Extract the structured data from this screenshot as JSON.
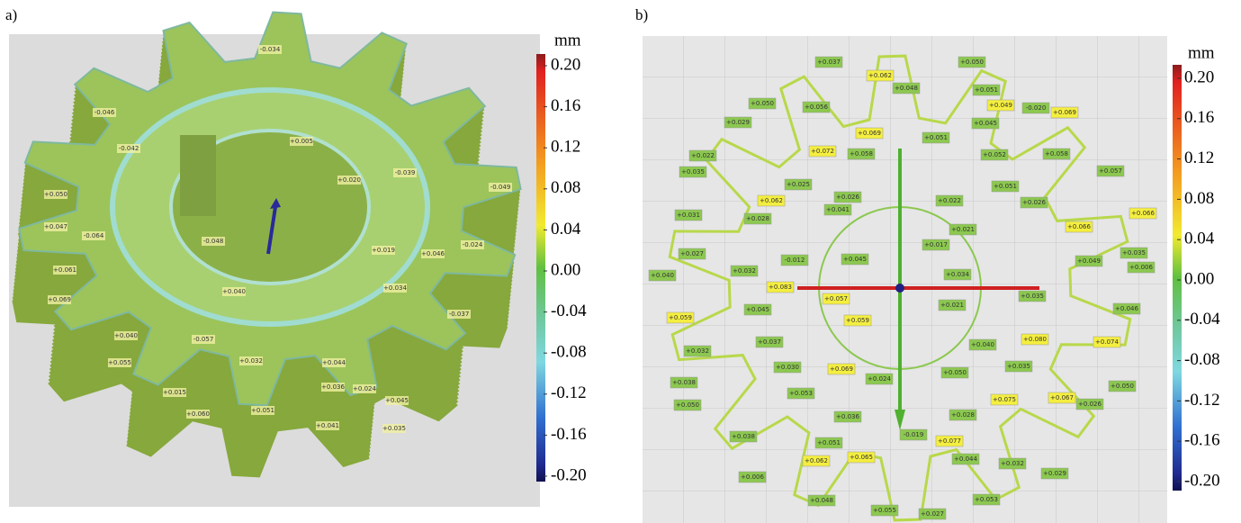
{
  "panels": [
    {
      "label": "a)",
      "unit": "mm",
      "scale": [
        "0.20",
        "0.16",
        "0.12",
        "0.08",
        "0.04",
        "0.00",
        "-0.04",
        "-0.08",
        "-0.12",
        "-0.16",
        "-0.20"
      ],
      "annotations": [
        "-0.034",
        "-0.046",
        "-0.042",
        "+0.005",
        "+0.020",
        "-0.039",
        "+0.050",
        "+0.047",
        "-0.049",
        "-0.064",
        "-0.048",
        "+0.019",
        "-0.024",
        "+0.061",
        "+0.046",
        "+0.069",
        "+0.040",
        "+0.034",
        "-0.037",
        "+0.040",
        "-0.057",
        "+0.055",
        "+0.032",
        "+0.044",
        "+0.036",
        "+0.024",
        "+0.015",
        "+0.045",
        "+0.060",
        "+0.051",
        "+0.041",
        "+0.035"
      ]
    },
    {
      "label": "b)",
      "unit": "mm",
      "scale": [
        "0.20",
        "0.16",
        "0.12",
        "0.08",
        "0.04",
        "0.00",
        "-0.04",
        "-0.08",
        "-0.12",
        "-0.16",
        "-0.20"
      ],
      "annotations": [
        {
          "text": "+0.037",
          "color": "#8cc850"
        },
        {
          "text": "+0.062",
          "color": "#f4ee40"
        },
        {
          "text": "+0.050",
          "color": "#8cc850"
        },
        {
          "text": "+0.048",
          "color": "#8cc850"
        },
        {
          "text": "+0.051",
          "color": "#8cc850"
        },
        {
          "text": "+0.049",
          "color": "#f4ee40"
        },
        {
          "text": "-0.020",
          "color": "#8cc850"
        },
        {
          "text": "+0.069",
          "color": "#f4ee40"
        },
        {
          "text": "+0.050",
          "color": "#8cc850"
        },
        {
          "text": "+0.029",
          "color": "#8cc850"
        },
        {
          "text": "+0.056",
          "color": "#8cc850"
        },
        {
          "text": "+0.045",
          "color": "#8cc850"
        },
        {
          "text": "+0.069",
          "color": "#f4ee40"
        },
        {
          "text": "+0.051",
          "color": "#8cc850"
        },
        {
          "text": "+0.072",
          "color": "#f4ee40"
        },
        {
          "text": "+0.058",
          "color": "#8cc850"
        },
        {
          "text": "+0.052",
          "color": "#8cc850"
        },
        {
          "text": "+0.058",
          "color": "#8cc850"
        },
        {
          "text": "+0.022",
          "color": "#8cc850"
        },
        {
          "text": "+0.025",
          "color": "#8cc850"
        },
        {
          "text": "+0.062",
          "color": "#f4ee40"
        },
        {
          "text": "+0.035",
          "color": "#8cc850"
        },
        {
          "text": "+0.026",
          "color": "#8cc850"
        },
        {
          "text": "+0.022",
          "color": "#8cc850"
        },
        {
          "text": "+0.057",
          "color": "#8cc850"
        },
        {
          "text": "+0.051",
          "color": "#8cc850"
        },
        {
          "text": "+0.026",
          "color": "#8cc850"
        },
        {
          "text": "+0.041",
          "color": "#8cc850"
        },
        {
          "text": "+0.031",
          "color": "#8cc850"
        },
        {
          "text": "+0.028",
          "color": "#8cc850"
        },
        {
          "text": "+0.021",
          "color": "#8cc850"
        },
        {
          "text": "+0.017",
          "color": "#8cc850"
        },
        {
          "text": "+0.066",
          "color": "#f4ee40"
        },
        {
          "text": "+0.066",
          "color": "#f4ee40"
        },
        {
          "text": "+0.027",
          "color": "#8cc850"
        },
        {
          "text": "+0.035",
          "color": "#8cc850"
        },
        {
          "text": "-0.012",
          "color": "#8cc850"
        },
        {
          "text": "+0.045",
          "color": "#8cc850"
        },
        {
          "text": "+0.049",
          "color": "#8cc850"
        },
        {
          "text": "+0.006",
          "color": "#8cc850"
        },
        {
          "text": "+0.040",
          "color": "#8cc850"
        },
        {
          "text": "+0.032",
          "color": "#8cc850"
        },
        {
          "text": "+0.034",
          "color": "#8cc850"
        },
        {
          "text": "+0.083",
          "color": "#f4ee40"
        },
        {
          "text": "+0.057",
          "color": "#f4ee40"
        },
        {
          "text": "+0.035",
          "color": "#8cc850"
        },
        {
          "text": "+0.021",
          "color": "#8cc850"
        },
        {
          "text": "+0.046",
          "color": "#8cc850"
        },
        {
          "text": "+0.059",
          "color": "#f4ee40"
        },
        {
          "text": "+0.045",
          "color": "#8cc850"
        },
        {
          "text": "+0.059",
          "color": "#f4ee40"
        },
        {
          "text": "+0.037",
          "color": "#8cc850"
        },
        {
          "text": "+0.080",
          "color": "#f4ee40"
        },
        {
          "text": "+0.074",
          "color": "#f4ee40"
        },
        {
          "text": "+0.040",
          "color": "#8cc850"
        },
        {
          "text": "+0.032",
          "color": "#8cc850"
        },
        {
          "text": "+0.030",
          "color": "#8cc850"
        },
        {
          "text": "+0.069",
          "color": "#f4ee40"
        },
        {
          "text": "+0.024",
          "color": "#8cc850"
        },
        {
          "text": "+0.050",
          "color": "#8cc850"
        },
        {
          "text": "+0.035",
          "color": "#8cc850"
        },
        {
          "text": "+0.038",
          "color": "#8cc850"
        },
        {
          "text": "+0.050",
          "color": "#8cc850"
        },
        {
          "text": "+0.053",
          "color": "#8cc850"
        },
        {
          "text": "+0.075",
          "color": "#f4ee40"
        },
        {
          "text": "+0.067",
          "color": "#f4ee40"
        },
        {
          "text": "+0.026",
          "color": "#8cc850"
        },
        {
          "text": "+0.050",
          "color": "#8cc850"
        },
        {
          "text": "+0.036",
          "color": "#8cc850"
        },
        {
          "text": "+0.028",
          "color": "#8cc850"
        },
        {
          "text": "+0.077",
          "color": "#f4ee40"
        },
        {
          "text": "-0.019",
          "color": "#8cc850"
        },
        {
          "text": "+0.038",
          "color": "#8cc850"
        },
        {
          "text": "+0.051",
          "color": "#8cc850"
        },
        {
          "text": "+0.062",
          "color": "#f4ee40"
        },
        {
          "text": "+0.065",
          "color": "#f4ee40"
        },
        {
          "text": "+0.044",
          "color": "#8cc850"
        },
        {
          "text": "+0.032",
          "color": "#8cc850"
        },
        {
          "text": "+0.006",
          "color": "#8cc850"
        },
        {
          "text": "+0.029",
          "color": "#8cc850"
        },
        {
          "text": "+0.048",
          "color": "#8cc850"
        },
        {
          "text": "+0.053",
          "color": "#8cc850"
        },
        {
          "text": "+0.055",
          "color": "#8cc850"
        },
        {
          "text": "+0.027",
          "color": "#8cc850"
        }
      ]
    }
  ]
}
